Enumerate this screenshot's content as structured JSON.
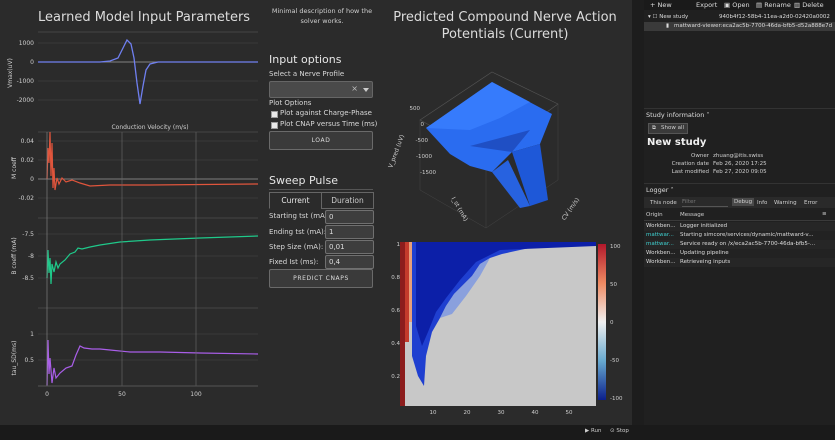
{
  "left_panel": {
    "title": "Learned Model Input Parameters",
    "plot1": {
      "ylabel": "Vmax(uV)",
      "yticks": [
        "1000",
        "0",
        "-1000",
        "-2000"
      ]
    },
    "cv_label": "Conduction Velocity (m/s)",
    "plot2": {
      "ylabel": "M coeff",
      "yticks": [
        "0.04",
        "0.02",
        "0",
        "-0.02"
      ]
    },
    "plot3": {
      "ylabel": "B coeff (mA)",
      "yticks": [
        "-7.5",
        "-8",
        "-8.5"
      ]
    },
    "plot4": {
      "ylabel": "tau_SD(ms)",
      "yticks": [
        "1",
        "0.5"
      ]
    },
    "xticks": [
      "0",
      "50",
      "100"
    ],
    "colors": {
      "plot1": "#6f7ff0",
      "plot2": "#e0553c",
      "plot3": "#1fc98a",
      "plot4": "#a95ee8"
    }
  },
  "middle_panel": {
    "description": "Minimal description of how the solver works.",
    "input_options": "Input options",
    "select_label": "Select a Nerve Profile",
    "select_clear": "×",
    "plot_options": "Plot Options",
    "checkbox1": "Plot against Charge-Phase",
    "checkbox2": "Plot CNAP versus Time (ms)",
    "load_button": "LOAD",
    "sweep_title": "Sweep Pulse",
    "tabs": [
      "Current",
      "Duration"
    ],
    "fields": [
      {
        "label": "Starting tst (mA):",
        "value": "0"
      },
      {
        "label": "Ending tst (mA):",
        "value": "1"
      },
      {
        "label": "Step Size (mA):",
        "value": "0,01"
      },
      {
        "label": "Fixed Ist (ms):",
        "value": "0,4"
      }
    ],
    "predict_button": "PREDICT CNAPS"
  },
  "right_panel": {
    "title": "Predicted Compound Nerve Action Potentials (Current)",
    "surface_zlabel": "V_pred (uV)",
    "surface_xlabel": "I_st (mA)",
    "surface_ylabel": "CV (m/s)",
    "surface_zticks": [
      "500",
      "0",
      "-500",
      "-1000",
      "-1500"
    ],
    "heatmap_yticks": [
      "1",
      "0.8",
      "0.6",
      "0.4",
      "0.2"
    ],
    "heatmap_xticks": [
      "10",
      "20",
      "30",
      "40",
      "50"
    ],
    "colorbar_ticks": [
      "100",
      "50",
      "0",
      "-50",
      "-100"
    ],
    "surface_color": "#2a6cf0"
  },
  "study_panel": {
    "toolbar": [
      "New",
      "Export",
      "Open",
      "Rename",
      "Delete"
    ],
    "tree": [
      {
        "name": "New study",
        "id": "940b4f12-58b4-11ea-a2d0-02420a0002"
      },
      {
        "name": "mattward-viewer:eca2ac5b-7700-46da-bfb5-d52a888e7d"
      }
    ],
    "study_info_header": "Study information",
    "show_all": "Show all",
    "study_name": "New study",
    "info": [
      {
        "key": "Owner",
        "value": "zhuang@itis.swiss"
      },
      {
        "key": "Creation date",
        "value": "Feb 26, 2020 17:25"
      },
      {
        "key": "Last modified",
        "value": "Feb 27, 2020 09:05"
      }
    ],
    "logger_header": "Logger",
    "logger_filter_node": "This node",
    "logger_filter_placeholder": "Filter",
    "logger_levels": [
      "Debug",
      "Info",
      "Warning",
      "Error"
    ],
    "logger_columns": [
      "Origin",
      "Message"
    ],
    "logger_rows": [
      {
        "origin": "Workben...",
        "message": "Logger initialized",
        "color": "#dddddd"
      },
      {
        "origin": "mattwar...",
        "message": "Starting simcore/services/dynamic/mattward-v...",
        "color": "#3fd0d0"
      },
      {
        "origin": "mattwar...",
        "message": "Service ready on /x/eca2ac5b-7700-46da-bfb5-...",
        "color": "#3fd0d0"
      },
      {
        "origin": "Workben...",
        "message": "Updating pipeline",
        "color": "#dddddd"
      },
      {
        "origin": "Workben...",
        "message": "Retrieveing inputs",
        "color": "#dddddd"
      }
    ]
  },
  "status_bar": {
    "run": "Run",
    "stop": "Stop"
  }
}
